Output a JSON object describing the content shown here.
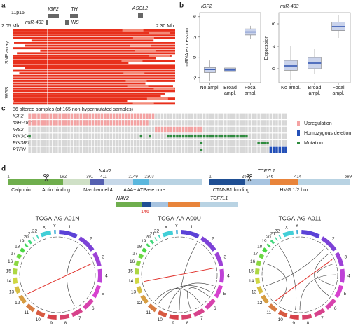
{
  "panel_a": {
    "label": "a",
    "locus": "11p15",
    "genes": [
      "IGF2",
      "TH",
      "ASCL2",
      "miR-483",
      "INS"
    ],
    "start": "2.05 Mb",
    "end": "2.30 Mb",
    "groups": [
      "SNP array",
      "WGS"
    ]
  },
  "panel_b": {
    "label": "b"
  },
  "chart_data": [
    {
      "type": "box",
      "title": "IGF2",
      "y_label": "mRNA expression",
      "categories": [
        "No ampl.",
        "Broad ampl.",
        "Focal ampl."
      ],
      "whisker_low": [
        -2.3,
        -1.8,
        1.8
      ],
      "q1": [
        -1.5,
        -1.4,
        2.2
      ],
      "median": [
        -1.2,
        -1.25,
        2.5
      ],
      "q3": [
        -1.0,
        -1.05,
        2.8
      ],
      "whisker_high": [
        -0.3,
        -0.7,
        3.1
      ],
      "color": "#2a4fb0",
      "ylim": [
        -2.5,
        4.4
      ],
      "yticks": [
        -2,
        0,
        2,
        4
      ]
    },
    {
      "type": "box",
      "title": "miR-483",
      "y_label": "Expression",
      "categories": [
        "No ampl.",
        "Broad ampl.",
        "Focal ampl."
      ],
      "whisker_low": [
        -2,
        -1,
        5.5
      ],
      "q1": [
        -0.3,
        0,
        6.8
      ],
      "median": [
        0.5,
        1,
        7.5
      ],
      "q3": [
        1.5,
        2,
        8.3
      ],
      "whisker_high": [
        4,
        3.5,
        9.5
      ],
      "color": "#2a4fb0",
      "ylim": [
        -2.5,
        10
      ],
      "yticks": [
        0,
        4,
        8
      ]
    }
  ],
  "panel_c": {
    "label": "c",
    "title": "86 altered samples (of 165 non-hypermutated samples)",
    "samples": 86,
    "legend": [
      "Upregulation",
      "Homozygous deletion",
      "Mutation"
    ],
    "colors": [
      "#f4a3a3",
      "#2450b8",
      "#2e8b3e"
    ],
    "rows": [
      {
        "gene": "IGF2",
        "alterations": [
          {
            "kind": 0,
            "from": 0,
            "to": 41
          }
        ]
      },
      {
        "gene": "miR-483",
        "alterations": [
          {
            "kind": 0,
            "from": 0,
            "to": 39
          }
        ]
      },
      {
        "gene": "IRS2",
        "alterations": [
          {
            "kind": 0,
            "from": 42,
            "to": 57
          }
        ]
      },
      {
        "gene": "PIK3CA",
        "alterations": [
          {
            "kind": 2,
            "from": 0,
            "to": 0
          },
          {
            "kind": 2,
            "from": 37,
            "to": 37
          },
          {
            "kind": 2,
            "from": 40,
            "to": 40
          },
          {
            "kind": 2,
            "from": 46,
            "to": 72
          }
        ]
      },
      {
        "gene": "PIK3R1",
        "alterations": [
          {
            "kind": 2,
            "from": 57,
            "to": 57
          },
          {
            "kind": 2,
            "from": 76,
            "to": 79
          }
        ]
      },
      {
        "gene": "PTEN",
        "alterations": [
          {
            "kind": 2,
            "from": 57,
            "to": 57
          },
          {
            "kind": 1,
            "from": 80,
            "to": 85
          }
        ]
      }
    ]
  },
  "panel_d": {
    "label": "d",
    "genes": [
      {
        "name": "NAV2",
        "positions": [
          1,
          192,
          391,
          411,
          2149,
          2303
        ],
        "domains": [
          "Calponin",
          "Actin binding",
          "Na-channel 4",
          "AAA+ ATPase core"
        ]
      },
      {
        "name": "TCF7L1",
        "positions": [
          1,
          250,
          346,
          414,
          589
        ],
        "domains": [
          "CTNNB1 binding",
          "HMG 1/2 box"
        ]
      }
    ],
    "fusion": {
      "parts": [
        "NAV2",
        "TCF7L1"
      ],
      "breakpoint": 146
    },
    "samples": [
      "TCGA-AG-A01N",
      "TCGA-AA-A00U",
      "TCGA-AG-A011"
    ],
    "chromosomes": [
      "1",
      "2",
      "3",
      "4",
      "5",
      "6",
      "7",
      "8",
      "9",
      "10",
      "11",
      "12",
      "13",
      "14",
      "15",
      "16",
      "17",
      "18",
      "19",
      "20",
      "21",
      "22",
      "X",
      "Y"
    ]
  }
}
